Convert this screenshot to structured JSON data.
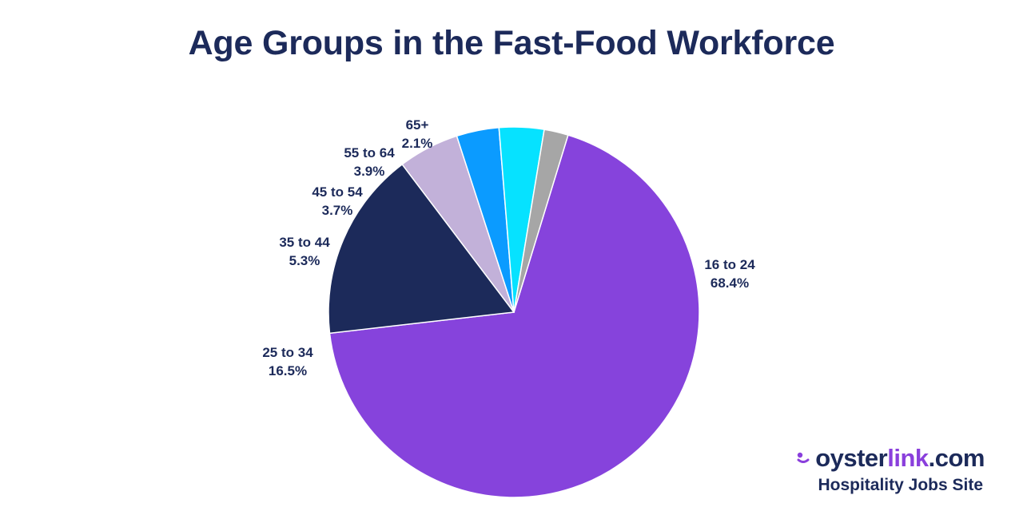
{
  "title": "Age Groups in the Fast-Food Workforce",
  "chart_data": {
    "type": "pie",
    "title": "Age Groups in the Fast-Food Workforce",
    "slices": [
      {
        "label": "16 to 24",
        "value": 68.4,
        "value_label": "68.4%",
        "color": "#8643dc"
      },
      {
        "label": "25 to 34",
        "value": 16.5,
        "value_label": "16.5%",
        "color": "#1c2a5a"
      },
      {
        "label": "35 to 44",
        "value": 5.3,
        "value_label": "5.3%",
        "color": "#c2b1d9"
      },
      {
        "label": "45 to 54",
        "value": 3.7,
        "value_label": "3.7%",
        "color": "#0b9bff"
      },
      {
        "label": "55 to 64",
        "value": 3.9,
        "value_label": "3.9%",
        "color": "#06e2ff"
      },
      {
        "label": "65+",
        "value": 2.1,
        "value_label": "2.1%",
        "color": "#a6a6a6"
      }
    ],
    "start_angle_deg": 17,
    "direction": "clockwise"
  },
  "brand": {
    "name_part1": "oyster",
    "name_part2": "link",
    "name_part3": ".com",
    "tagline": "Hospitality Jobs Site",
    "icon": "oysterlink-logo-icon",
    "colors": {
      "navy": "#1c2a5a",
      "purple": "#8a3fdc"
    }
  }
}
